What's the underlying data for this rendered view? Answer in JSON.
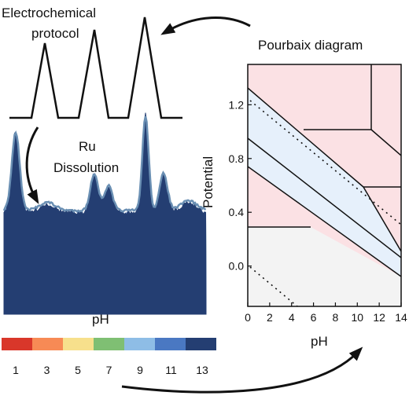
{
  "labels": {
    "protocol_line1": "Electrochemical",
    "protocol_line2": "protocol",
    "ru_line1": "Ru",
    "ru_line2": "Dissolution",
    "spectrum_ph": "pH",
    "pourbaix_title": "Pourbaix diagram"
  },
  "colorbar": {
    "colors": [
      "#d9372a",
      "#f78a55",
      "#f7e08c",
      "#7fbf73",
      "#8ebde6",
      "#4a78c2",
      "#243e72"
    ],
    "tick_labels": [
      "1",
      "3",
      "5",
      "7",
      "9",
      "11",
      "13"
    ]
  },
  "chart_data": {
    "type": "line",
    "xlabel": "pH",
    "ylabel": "Potential",
    "xlim": [
      0,
      14
    ],
    "ylim": [
      -0.3,
      1.5
    ],
    "xticks": [
      "0",
      "2",
      "4",
      "6",
      "8",
      "10",
      "12",
      "14"
    ],
    "yticks": [
      "0.0",
      "0.4",
      "0.8",
      "1.2"
    ],
    "region_colors": {
      "oxide": "#fbe1e4",
      "water": "#e6f0fb",
      "metal": "#f3f3f3"
    }
  }
}
